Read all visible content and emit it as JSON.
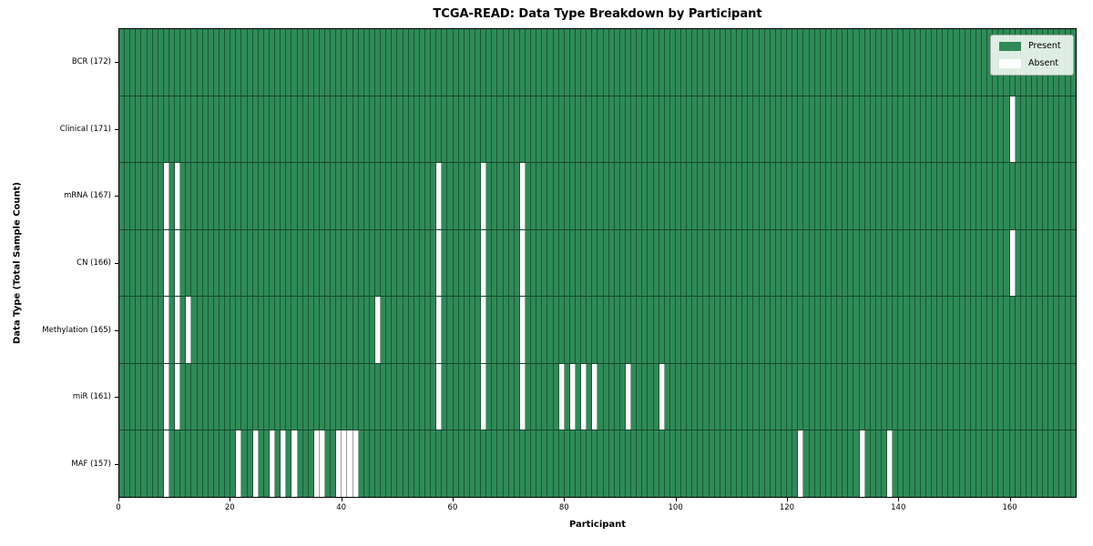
{
  "chart_data": {
    "type": "heatmap",
    "title": "TCGA-READ: Data Type Breakdown by Participant",
    "xlabel": "Participant",
    "ylabel": "Data Type (Total Sample Count)",
    "n_participants": 172,
    "x_axis_range": [
      0,
      172
    ],
    "x_ticks": [
      "0",
      "20",
      "40",
      "60",
      "80",
      "100",
      "120",
      "140",
      "160"
    ],
    "x_tick_values": [
      0,
      20,
      40,
      60,
      80,
      100,
      120,
      140,
      160
    ],
    "colors": {
      "present": "#2e8b57",
      "absent": "#ffffff"
    },
    "legend_position": "upper right",
    "legend": [
      {
        "label": "Present",
        "color": "#2e8b57"
      },
      {
        "label": "Absent",
        "color": "#ffffff"
      }
    ],
    "rows": [
      {
        "label": "BCR (172)",
        "data_type": "BCR",
        "total": 172,
        "absent_participants": []
      },
      {
        "label": "Clinical (171)",
        "data_type": "Clinical",
        "total": 171,
        "absent_participants": [
          160
        ]
      },
      {
        "label": "mRNA (167)",
        "data_type": "mRNA",
        "total": 167,
        "absent_participants": [
          8,
          10,
          57,
          65,
          72
        ]
      },
      {
        "label": "CN (166)",
        "data_type": "CN",
        "total": 166,
        "absent_participants": [
          8,
          10,
          57,
          65,
          72,
          160
        ]
      },
      {
        "label": "Methylation (165)",
        "data_type": "Methylation",
        "total": 165,
        "absent_participants": [
          8,
          10,
          12,
          46,
          57,
          65,
          72
        ]
      },
      {
        "label": "miR (161)",
        "data_type": "miR",
        "total": 161,
        "absent_participants": [
          8,
          10,
          57,
          65,
          72,
          79,
          81,
          83,
          85,
          91,
          97
        ]
      },
      {
        "label": "MAF (157)",
        "data_type": "MAF",
        "total": 157,
        "absent_participants": [
          8,
          21,
          24,
          27,
          29,
          31,
          35,
          36,
          39,
          40,
          41,
          42,
          122,
          133,
          138
        ]
      }
    ]
  }
}
